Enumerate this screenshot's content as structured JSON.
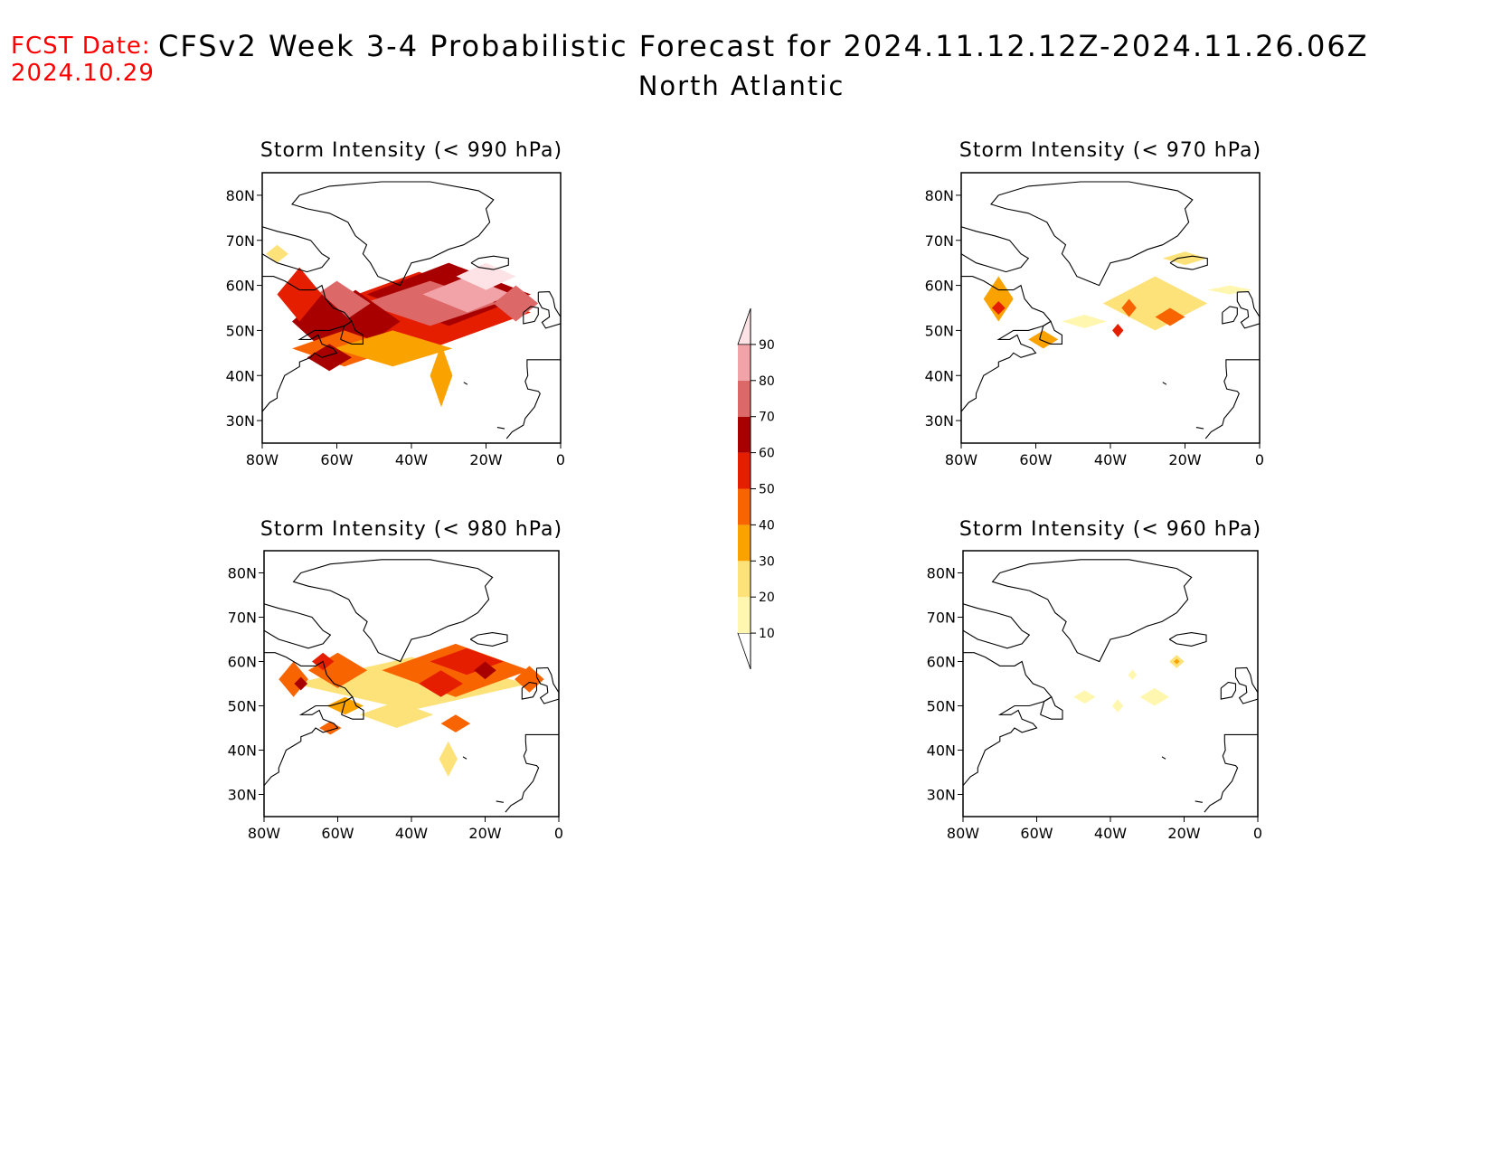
{
  "header": {
    "fcst_label": "FCST Date:",
    "fcst_date": "2024.10.29",
    "title": "CFSv2 Week 3-4 Probabilistic Forecast for 2024.11.12.12Z-2024.11.26.06Z",
    "region": "North Atlantic"
  },
  "axes": {
    "lat_labels": [
      "80N",
      "70N",
      "60N",
      "50N",
      "40N",
      "30N"
    ],
    "lon_labels": [
      "80W",
      "60W",
      "40W",
      "20W",
      "0"
    ]
  },
  "colorbar": {
    "levels": [
      "10",
      "20",
      "30",
      "40",
      "50",
      "60",
      "70",
      "80",
      "90"
    ],
    "colors": [
      "#fff7b0",
      "#fde27a",
      "#f9a200",
      "#f86400",
      "#e61e00",
      "#a80000",
      "#dd6868",
      "#f2a3a8",
      "#fde3e6"
    ]
  },
  "panels": [
    {
      "title": "Storm Intensity (< 990 hPa)",
      "blobs": [
        {
          "lon": -38,
          "lat": 54,
          "rlon": 30,
          "rlat": 9,
          "level": 4
        },
        {
          "lon": -30,
          "lat": 58,
          "rlon": 22,
          "rlat": 7,
          "level": 5
        },
        {
          "lon": -35,
          "lat": 56,
          "rlon": 18,
          "rlat": 5,
          "level": 6
        },
        {
          "lon": -25,
          "lat": 58,
          "rlon": 12,
          "rlat": 4,
          "level": 7
        },
        {
          "lon": -55,
          "lat": 52,
          "rlon": 12,
          "rlat": 7,
          "level": 5
        },
        {
          "lon": -60,
          "lat": 56,
          "rlon": 9,
          "rlat": 5,
          "level": 6
        },
        {
          "lon": -64,
          "lat": 52,
          "rlon": 8,
          "rlat": 6,
          "level": 5
        },
        {
          "lon": -70,
          "lat": 58,
          "rlon": 6,
          "rlat": 6,
          "level": 4
        },
        {
          "lon": -58,
          "lat": 46,
          "rlon": 14,
          "rlat": 4,
          "level": 3
        },
        {
          "lon": -45,
          "lat": 46,
          "rlon": 16,
          "rlat": 4,
          "level": 2
        },
        {
          "lon": -62,
          "lat": 44,
          "rlon": 6,
          "rlat": 3,
          "level": 5
        },
        {
          "lon": -32,
          "lat": 40,
          "rlon": 3,
          "rlat": 7,
          "level": 2
        },
        {
          "lon": -76,
          "lat": 67,
          "rlon": 3,
          "rlat": 2,
          "level": 1
        },
        {
          "lon": -20,
          "lat": 62,
          "rlon": 8,
          "rlat": 3,
          "level": 8
        },
        {
          "lon": -12,
          "lat": 56,
          "rlon": 6,
          "rlat": 4,
          "level": 6
        }
      ]
    },
    {
      "title": "Storm Intensity (< 970 hPa)",
      "blobs": [
        {
          "lon": -70,
          "lat": 57,
          "rlon": 4,
          "rlat": 5,
          "level": 2
        },
        {
          "lon": -70,
          "lat": 55,
          "rlon": 1.8,
          "rlat": 1.5,
          "level": 4
        },
        {
          "lon": -28,
          "lat": 56,
          "rlon": 14,
          "rlat": 6,
          "level": 1
        },
        {
          "lon": -24,
          "lat": 53,
          "rlon": 4,
          "rlat": 2,
          "level": 3
        },
        {
          "lon": -35,
          "lat": 55,
          "rlon": 2,
          "rlat": 2,
          "level": 3
        },
        {
          "lon": -38,
          "lat": 50,
          "rlon": 1.5,
          "rlat": 1.5,
          "level": 4
        },
        {
          "lon": -58,
          "lat": 48,
          "rlon": 4,
          "rlat": 2,
          "level": 2
        },
        {
          "lon": -47,
          "lat": 52,
          "rlon": 6,
          "rlat": 1.5,
          "level": 0
        },
        {
          "lon": -20,
          "lat": 66,
          "rlon": 6,
          "rlat": 1.5,
          "level": 1
        },
        {
          "lon": -8,
          "lat": 59,
          "rlon": 6,
          "rlat": 1,
          "level": 0
        }
      ]
    },
    {
      "title": "Storm Intensity (< 980 hPa)",
      "blobs": [
        {
          "lon": -40,
          "lat": 55,
          "rlon": 32,
          "rlat": 6,
          "level": 1
        },
        {
          "lon": -28,
          "lat": 58,
          "rlon": 20,
          "rlat": 6,
          "level": 3
        },
        {
          "lon": -25,
          "lat": 60,
          "rlon": 10,
          "rlat": 3,
          "level": 4
        },
        {
          "lon": -20,
          "lat": 58,
          "rlon": 3,
          "rlat": 2,
          "level": 5
        },
        {
          "lon": -32,
          "lat": 55,
          "rlon": 6,
          "rlat": 3,
          "level": 4
        },
        {
          "lon": -60,
          "lat": 58,
          "rlon": 8,
          "rlat": 4,
          "level": 3
        },
        {
          "lon": -64,
          "lat": 60,
          "rlon": 3,
          "rlat": 2,
          "level": 4
        },
        {
          "lon": -72,
          "lat": 56,
          "rlon": 4,
          "rlat": 4,
          "level": 3
        },
        {
          "lon": -70,
          "lat": 55,
          "rlon": 1.8,
          "rlat": 1.5,
          "level": 5
        },
        {
          "lon": -58,
          "lat": 50,
          "rlon": 5,
          "rlat": 2,
          "level": 2
        },
        {
          "lon": -62,
          "lat": 45,
          "rlon": 3,
          "rlat": 1.5,
          "level": 3
        },
        {
          "lon": -44,
          "lat": 48,
          "rlon": 10,
          "rlat": 3,
          "level": 1
        },
        {
          "lon": -28,
          "lat": 46,
          "rlon": 4,
          "rlat": 2,
          "level": 3
        },
        {
          "lon": -30,
          "lat": 38,
          "rlon": 2.5,
          "rlat": 4,
          "level": 1
        },
        {
          "lon": -8,
          "lat": 56,
          "rlon": 4,
          "rlat": 3,
          "level": 3
        }
      ]
    },
    {
      "title": "Storm Intensity (< 960 hPa)",
      "blobs": [
        {
          "lon": -22,
          "lat": 60,
          "rlon": 2,
          "rlat": 1.5,
          "level": 1
        },
        {
          "lon": -22,
          "lat": 60,
          "rlon": 0.8,
          "rlat": 0.6,
          "level": 2
        },
        {
          "lon": -28,
          "lat": 52,
          "rlon": 4,
          "rlat": 2,
          "level": 0
        },
        {
          "lon": -38,
          "lat": 50,
          "rlon": 1.5,
          "rlat": 1.5,
          "level": 0
        },
        {
          "lon": -34,
          "lat": 57,
          "rlon": 1.2,
          "rlat": 1.2,
          "level": 0
        },
        {
          "lon": -47,
          "lat": 52,
          "rlon": 3,
          "rlat": 1.5,
          "level": 0
        }
      ]
    }
  ]
}
